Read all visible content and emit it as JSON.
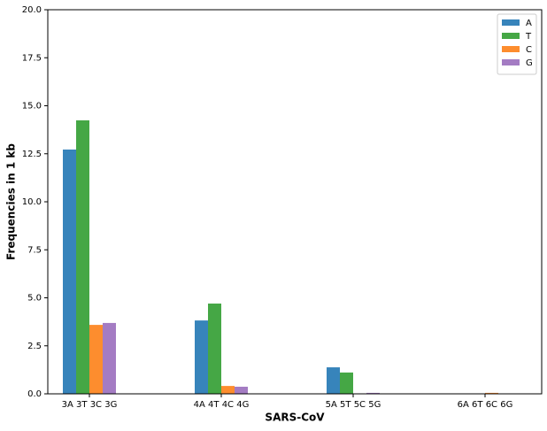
{
  "chart_data": {
    "type": "bar",
    "xlabel": "SARS-CoV",
    "ylabel": "Frequencies in 1 kb",
    "categories": [
      "3A 3T 3C 3G",
      "4A 4T 4C 4G",
      "5A 5T 5C 5G",
      "6A 6T 6C 6G"
    ],
    "series": [
      {
        "name": "A",
        "color": "#3784bb",
        "values": [
          12.72,
          3.82,
          1.38,
          0
        ]
      },
      {
        "name": "T",
        "color": "#45a745",
        "values": [
          14.24,
          4.7,
          1.11,
          0.02
        ]
      },
      {
        "name": "C",
        "color": "#fd8d2e",
        "values": [
          3.59,
          0.41,
          0,
          0.05
        ]
      },
      {
        "name": "G",
        "color": "#a47cc3",
        "values": [
          3.69,
          0.37,
          0.05,
          0.02
        ]
      }
    ],
    "ylim": [
      0,
      20
    ],
    "yticks": [
      {
        "value": 0,
        "label": "0.0"
      },
      2.5,
      {
        "value": 5,
        "label": "5.0"
      },
      7.5,
      {
        "value": 10,
        "label": "10.0"
      },
      12.5,
      {
        "value": 15,
        "label": "15.0"
      },
      17.5,
      {
        "value": 20,
        "label": "20.0"
      }
    ],
    "legend": "upper right"
  }
}
